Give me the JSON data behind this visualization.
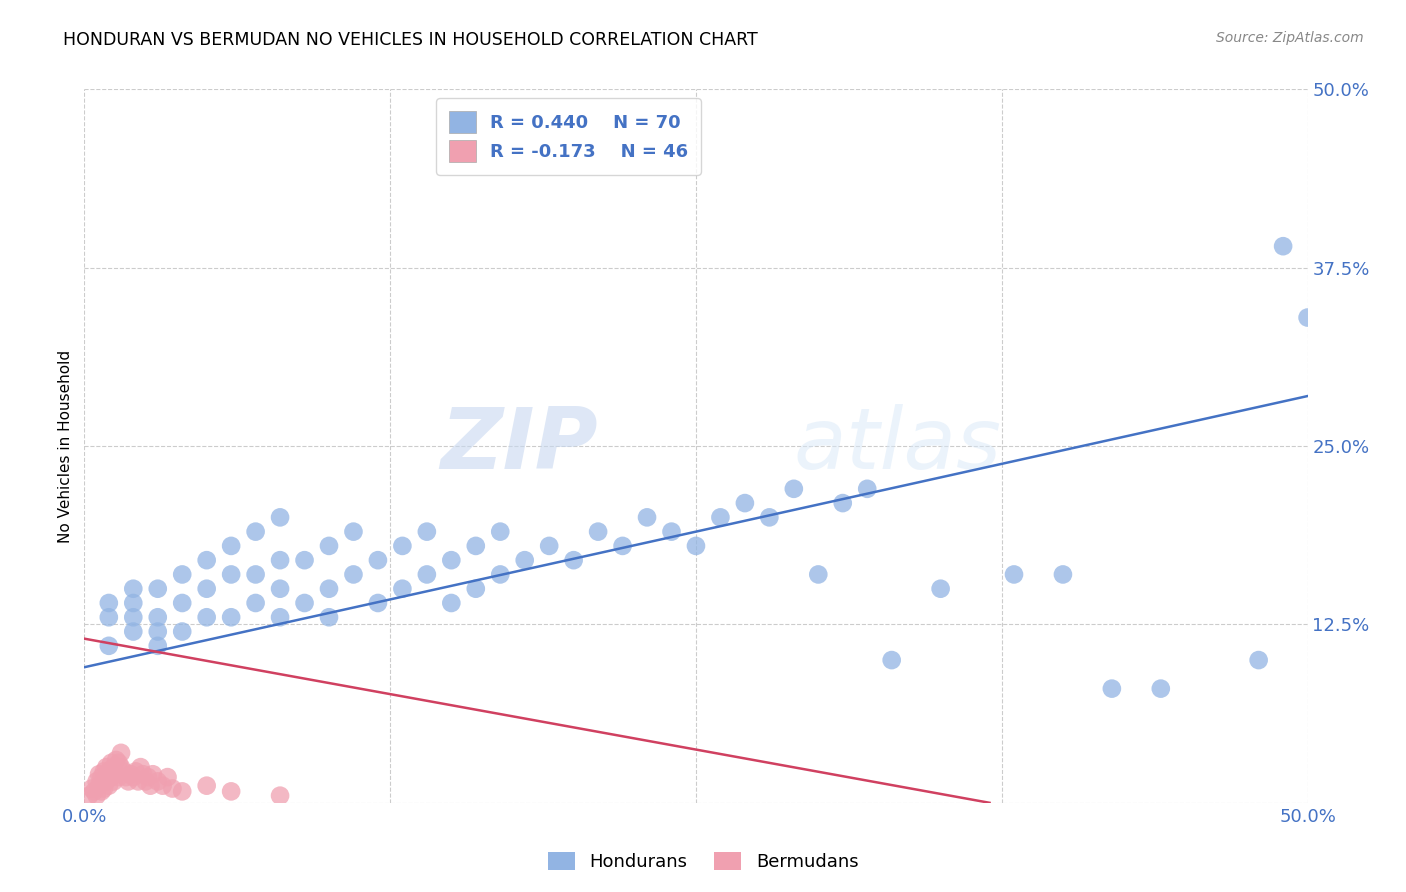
{
  "title": "HONDURAN VS BERMUDAN NO VEHICLES IN HOUSEHOLD CORRELATION CHART",
  "source": "Source: ZipAtlas.com",
  "ylabel_label": "No Vehicles in Household",
  "xlim": [
    0.0,
    0.5
  ],
  "ylim": [
    0.0,
    0.5
  ],
  "xtick_vals": [
    0.0,
    0.125,
    0.25,
    0.375,
    0.5
  ],
  "ytick_vals": [
    0.0,
    0.125,
    0.25,
    0.375,
    0.5
  ],
  "blue_color": "#92b4e3",
  "pink_color": "#f0a0b0",
  "blue_line_color": "#4472c4",
  "pink_line_color": "#d04060",
  "legend_R1": "R = 0.440",
  "legend_N1": "N = 70",
  "legend_R2": "R = -0.173",
  "legend_N2": "N = 46",
  "watermark_zip": "ZIP",
  "watermark_atlas": "atlas",
  "legend_label1": "Hondurans",
  "legend_label2": "Bermudans",
  "blue_scatter_x": [
    0.01,
    0.01,
    0.01,
    0.02,
    0.02,
    0.02,
    0.02,
    0.03,
    0.03,
    0.03,
    0.03,
    0.04,
    0.04,
    0.04,
    0.05,
    0.05,
    0.05,
    0.06,
    0.06,
    0.06,
    0.07,
    0.07,
    0.07,
    0.08,
    0.08,
    0.08,
    0.08,
    0.09,
    0.09,
    0.1,
    0.1,
    0.1,
    0.11,
    0.11,
    0.12,
    0.12,
    0.13,
    0.13,
    0.14,
    0.14,
    0.15,
    0.15,
    0.16,
    0.16,
    0.17,
    0.17,
    0.18,
    0.19,
    0.2,
    0.21,
    0.22,
    0.23,
    0.24,
    0.25,
    0.26,
    0.27,
    0.28,
    0.29,
    0.3,
    0.31,
    0.32,
    0.33,
    0.35,
    0.38,
    0.4,
    0.42,
    0.44,
    0.48,
    0.49,
    0.5
  ],
  "blue_scatter_y": [
    0.11,
    0.13,
    0.14,
    0.12,
    0.13,
    0.14,
    0.15,
    0.11,
    0.12,
    0.13,
    0.15,
    0.12,
    0.14,
    0.16,
    0.13,
    0.15,
    0.17,
    0.13,
    0.16,
    0.18,
    0.14,
    0.16,
    0.19,
    0.13,
    0.15,
    0.17,
    0.2,
    0.14,
    0.17,
    0.13,
    0.15,
    0.18,
    0.16,
    0.19,
    0.14,
    0.17,
    0.15,
    0.18,
    0.16,
    0.19,
    0.14,
    0.17,
    0.15,
    0.18,
    0.16,
    0.19,
    0.17,
    0.18,
    0.17,
    0.19,
    0.18,
    0.2,
    0.19,
    0.18,
    0.2,
    0.21,
    0.2,
    0.22,
    0.16,
    0.21,
    0.22,
    0.1,
    0.15,
    0.16,
    0.16,
    0.08,
    0.08,
    0.1,
    0.39,
    0.34
  ],
  "pink_scatter_x": [
    0.002,
    0.003,
    0.004,
    0.005,
    0.005,
    0.006,
    0.006,
    0.007,
    0.007,
    0.008,
    0.008,
    0.009,
    0.009,
    0.01,
    0.01,
    0.011,
    0.011,
    0.012,
    0.012,
    0.013,
    0.013,
    0.014,
    0.014,
    0.015,
    0.015,
    0.016,
    0.017,
    0.018,
    0.019,
    0.02,
    0.021,
    0.022,
    0.023,
    0.024,
    0.025,
    0.026,
    0.027,
    0.028,
    0.03,
    0.032,
    0.034,
    0.036,
    0.04,
    0.05,
    0.06,
    0.08
  ],
  "pink_scatter_y": [
    0.005,
    0.01,
    0.008,
    0.015,
    0.005,
    0.012,
    0.02,
    0.008,
    0.018,
    0.01,
    0.022,
    0.015,
    0.025,
    0.012,
    0.022,
    0.018,
    0.028,
    0.015,
    0.025,
    0.02,
    0.03,
    0.018,
    0.028,
    0.025,
    0.035,
    0.022,
    0.018,
    0.015,
    0.02,
    0.018,
    0.022,
    0.015,
    0.025,
    0.02,
    0.015,
    0.018,
    0.012,
    0.02,
    0.015,
    0.012,
    0.018,
    0.01,
    0.008,
    0.012,
    0.008,
    0.005
  ],
  "blue_line_x0": 0.0,
  "blue_line_x1": 0.5,
  "blue_line_y0": 0.095,
  "blue_line_y1": 0.285,
  "pink_line_x0": 0.0,
  "pink_line_x1": 0.37,
  "pink_line_y0": 0.115,
  "pink_line_y1": 0.0
}
